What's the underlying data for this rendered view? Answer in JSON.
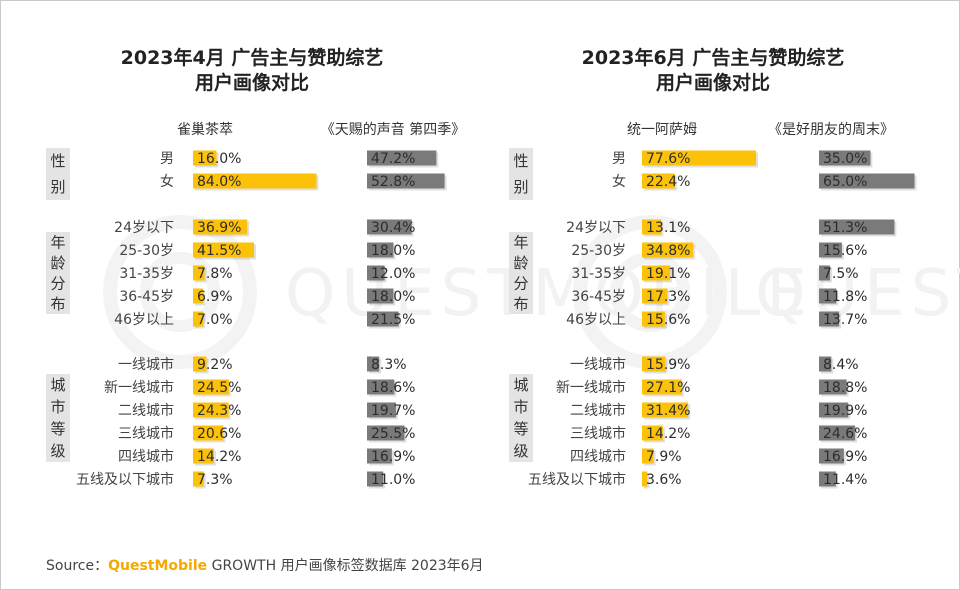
{
  "colors": {
    "yellow": "#fcc20a",
    "gray": "#7a7a7a",
    "group_bg": "#e4e4e4",
    "brand": "#f5a800"
  },
  "watermark": "QUESTMOBILE",
  "source": {
    "prefix": "Source：",
    "brand": "QuestMobile",
    "suffix": " GROWTH 用户画像标签数据库 2023年6月"
  },
  "chart_data": [
    {
      "type": "bar",
      "title_line1": "2023年4月 广告主与赞助综艺",
      "title_line2": "用户画像对比",
      "series": [
        {
          "name": "雀巢茶萃",
          "color": "yellow"
        },
        {
          "name": "《天赐的声音 第四季》",
          "color": "gray"
        }
      ],
      "groups": [
        {
          "label": "性别",
          "chars": [
            "性",
            "别"
          ],
          "categories": [
            "男",
            "女"
          ],
          "values": [
            [
              16.0,
              84.0
            ],
            [
              47.2,
              52.8
            ]
          ],
          "labels": [
            [
              "16.0%",
              "84.0%"
            ],
            [
              "47.2%",
              "52.8%"
            ]
          ]
        },
        {
          "label": "年龄分布",
          "chars": [
            "年",
            "龄",
            "分",
            "布"
          ],
          "categories": [
            "24岁以下",
            "25-30岁",
            "31-35岁",
            "36-45岁",
            "46岁以上"
          ],
          "values": [
            [
              36.9,
              41.5,
              7.8,
              6.9,
              7.0
            ],
            [
              30.4,
              18.0,
              12.0,
              18.0,
              21.5
            ]
          ],
          "labels": [
            [
              "36.9%",
              "41.5%",
              "7.8%",
              "6.9%",
              "7.0%"
            ],
            [
              "30.4%",
              "18.0%",
              "12.0%",
              "18.0%",
              "21.5%"
            ]
          ]
        },
        {
          "label": "城市等级",
          "chars": [
            "城",
            "市",
            "等",
            "级"
          ],
          "categories": [
            "一线城市",
            "新一线城市",
            "二线城市",
            "三线城市",
            "四线城市",
            "五线及以下城市"
          ],
          "values": [
            [
              9.2,
              24.5,
              24.3,
              20.6,
              14.2,
              7.3
            ],
            [
              8.3,
              18.6,
              19.7,
              25.5,
              16.9,
              11.0
            ]
          ],
          "labels": [
            [
              "9.2%",
              "24.5%",
              "24.3%",
              "20.6%",
              "14.2%",
              "7.3%"
            ],
            [
              "8.3%",
              "18.6%",
              "19.7%",
              "25.5%",
              "16.9%",
              "11.0%"
            ]
          ]
        }
      ]
    },
    {
      "type": "bar",
      "title_line1": "2023年6月 广告主与赞助综艺",
      "title_line2": "用户画像对比",
      "series": [
        {
          "name": "统一阿萨姆",
          "color": "yellow"
        },
        {
          "name": "《是好朋友的周末》",
          "color": "gray"
        }
      ],
      "groups": [
        {
          "label": "性别",
          "chars": [
            "性",
            "别"
          ],
          "categories": [
            "男",
            "女"
          ],
          "values": [
            [
              77.6,
              22.4
            ],
            [
              35.0,
              65.0
            ]
          ],
          "labels": [
            [
              "77.6%",
              "22.4%"
            ],
            [
              "35.0%",
              "65.0%"
            ]
          ]
        },
        {
          "label": "年龄分布",
          "chars": [
            "年",
            "龄",
            "分",
            "布"
          ],
          "categories": [
            "24岁以下",
            "25-30岁",
            "31-35岁",
            "36-45岁",
            "46岁以上"
          ],
          "values": [
            [
              13.1,
              34.8,
              19.1,
              17.3,
              15.6
            ],
            [
              51.3,
              15.6,
              7.5,
              11.8,
              13.7
            ]
          ],
          "labels": [
            [
              "13.1%",
              "34.8%",
              "19.1%",
              "17.3%",
              "15.6%"
            ],
            [
              "51.3%",
              "15.6%",
              "7.5%",
              "11.8%",
              "13.7%"
            ]
          ]
        },
        {
          "label": "城市等级",
          "chars": [
            "城",
            "市",
            "等",
            "级"
          ],
          "categories": [
            "一线城市",
            "新一线城市",
            "二线城市",
            "三线城市",
            "四线城市",
            "五线及以下城市"
          ],
          "values": [
            [
              15.9,
              27.1,
              31.4,
              14.2,
              7.9,
              3.6
            ],
            [
              8.4,
              18.8,
              19.9,
              24.6,
              16.9,
              11.4
            ]
          ],
          "labels": [
            [
              "15.9%",
              "27.1%",
              "31.4%",
              "14.2%",
              "7.9%",
              "3.6%"
            ],
            [
              "8.4%",
              "18.8%",
              "19.9%",
              "24.6%",
              "16.9%",
              "11.4%"
            ]
          ]
        }
      ]
    }
  ]
}
